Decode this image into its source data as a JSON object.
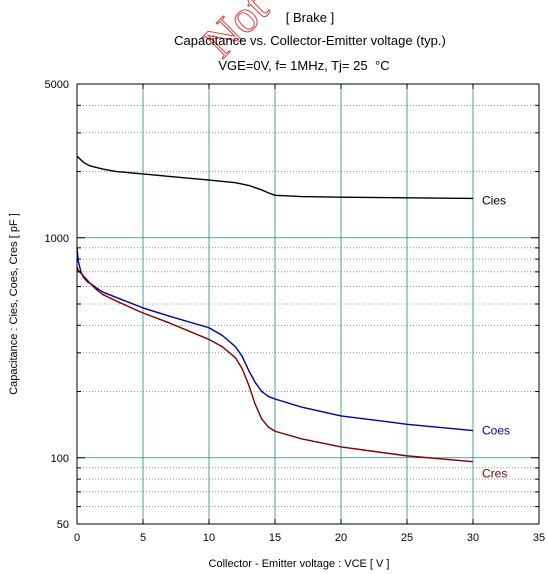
{
  "chart_data": {
    "type": "line",
    "title_line1": "[ Brake ]",
    "title_line2": "Capacitance  vs.  Collector-Emitter voltage  (typ.)",
    "title_line3": "VGE=0V,  f= 1MHz,  Tj= 25",
    "title_unit": "°C",
    "watermark": "Not",
    "xlabel": "Collector - Emitter voltage  :  VCE  [ V ]",
    "ylabel": "Capacitance  :  Cies, Coes, Cres  [ pF ]",
    "xlim": [
      0,
      35
    ],
    "ylim": [
      50,
      5000
    ],
    "yscale": "log",
    "xticks": [
      0,
      5,
      10,
      15,
      20,
      25,
      30,
      35
    ],
    "xtick_labels": [
      "0",
      "5",
      "10",
      "15",
      "20",
      "25",
      "30",
      "35"
    ],
    "yticks": [
      50,
      100,
      1000,
      5000
    ],
    "ytick_labels": [
      "50",
      "100",
      "1000",
      "5000"
    ],
    "grid": true,
    "colors": {
      "Cies": "#000000",
      "Coes": "#0000a0",
      "Cres": "#800000",
      "grid": "#1a8a8a",
      "minor": "#555555"
    },
    "series": [
      {
        "name": "Cies",
        "x": [
          0,
          0.5,
          1,
          2,
          3,
          5,
          7,
          10,
          12,
          13,
          14,
          14.5,
          15,
          17,
          20,
          25,
          30
        ],
        "y": [
          2350,
          2200,
          2120,
          2050,
          2000,
          1950,
          1900,
          1830,
          1780,
          1730,
          1650,
          1600,
          1560,
          1540,
          1530,
          1520,
          1510
        ]
      },
      {
        "name": "Coes",
        "x": [
          0,
          0.1,
          0.3,
          0.5,
          0.8,
          1,
          1.5,
          2,
          3,
          5,
          7,
          10,
          11,
          12,
          12.5,
          13,
          13.5,
          14,
          14.5,
          15,
          17,
          20,
          25,
          30
        ],
        "y": [
          900,
          780,
          700,
          660,
          630,
          620,
          590,
          565,
          535,
          480,
          440,
          390,
          360,
          320,
          290,
          250,
          220,
          200,
          190,
          185,
          170,
          155,
          142,
          133
        ]
      },
      {
        "name": "Cres",
        "x": [
          0,
          0.1,
          0.3,
          0.5,
          1,
          1.5,
          2,
          3,
          5,
          7,
          10,
          11,
          12,
          12.5,
          13,
          13.5,
          14,
          14.5,
          15,
          17,
          20,
          25,
          30
        ],
        "y": [
          740,
          710,
          690,
          670,
          620,
          580,
          550,
          515,
          455,
          410,
          345,
          320,
          285,
          255,
          215,
          175,
          150,
          138,
          132,
          122,
          112,
          102,
          96
        ]
      }
    ]
  }
}
